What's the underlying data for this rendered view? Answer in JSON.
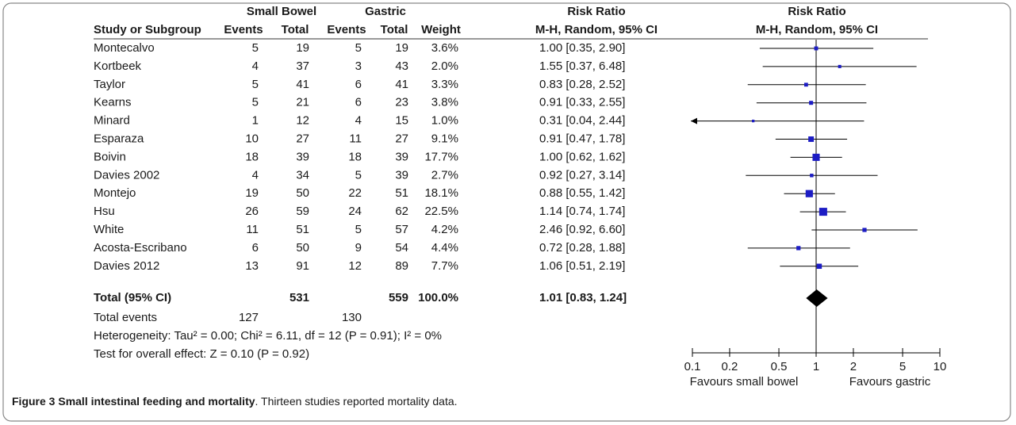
{
  "chart_data": {
    "type": "forest",
    "header": {
      "group_1": "Small Bowel",
      "group_2": "Gastric",
      "effect_title": "Risk Ratio",
      "plot_title": "Risk Ratio",
      "study_col": "Study or Subgroup",
      "events_1": "Events",
      "total_1": "Total",
      "events_2": "Events",
      "total_2": "Total",
      "weight": "Weight",
      "method": "M-H, Random, 95% CI",
      "plot_method": "M-H, Random, 95% CI"
    },
    "studies": [
      {
        "name": "Montecalvo",
        "sb_events": 5,
        "sb_total": 19,
        "g_events": 5,
        "g_total": 19,
        "weight": 3.6,
        "weight_label": "3.6%",
        "rr": 1.0,
        "lo": 0.35,
        "hi": 2.9,
        "ci_label": "1.00 [0.35, 2.90]"
      },
      {
        "name": "Kortbeek",
        "sb_events": 4,
        "sb_total": 37,
        "g_events": 3,
        "g_total": 43,
        "weight": 2.0,
        "weight_label": "2.0%",
        "rr": 1.55,
        "lo": 0.37,
        "hi": 6.48,
        "ci_label": "1.55 [0.37, 6.48]"
      },
      {
        "name": "Taylor",
        "sb_events": 5,
        "sb_total": 41,
        "g_events": 6,
        "g_total": 41,
        "weight": 3.3,
        "weight_label": "3.3%",
        "rr": 0.83,
        "lo": 0.28,
        "hi": 2.52,
        "ci_label": "0.83 [0.28, 2.52]"
      },
      {
        "name": "Kearns",
        "sb_events": 5,
        "sb_total": 21,
        "g_events": 6,
        "g_total": 23,
        "weight": 3.8,
        "weight_label": "3.8%",
        "rr": 0.91,
        "lo": 0.33,
        "hi": 2.55,
        "ci_label": "0.91 [0.33, 2.55]"
      },
      {
        "name": "Minard",
        "sb_events": 1,
        "sb_total": 12,
        "g_events": 4,
        "g_total": 15,
        "weight": 1.0,
        "weight_label": "1.0%",
        "rr": 0.31,
        "lo": 0.04,
        "hi": 2.44,
        "ci_label": "0.31 [0.04, 2.44]"
      },
      {
        "name": "Esparaza",
        "sb_events": 10,
        "sb_total": 27,
        "g_events": 11,
        "g_total": 27,
        "weight": 9.1,
        "weight_label": "9.1%",
        "rr": 0.91,
        "lo": 0.47,
        "hi": 1.78,
        "ci_label": "0.91 [0.47, 1.78]"
      },
      {
        "name": "Boivin",
        "sb_events": 18,
        "sb_total": 39,
        "g_events": 18,
        "g_total": 39,
        "weight": 17.7,
        "weight_label": "17.7%",
        "rr": 1.0,
        "lo": 0.62,
        "hi": 1.62,
        "ci_label": "1.00 [0.62, 1.62]"
      },
      {
        "name": "Davies 2002",
        "sb_events": 4,
        "sb_total": 34,
        "g_events": 5,
        "g_total": 39,
        "weight": 2.7,
        "weight_label": "2.7%",
        "rr": 0.92,
        "lo": 0.27,
        "hi": 3.14,
        "ci_label": "0.92 [0.27, 3.14]"
      },
      {
        "name": "Montejo",
        "sb_events": 19,
        "sb_total": 50,
        "g_events": 22,
        "g_total": 51,
        "weight": 18.1,
        "weight_label": "18.1%",
        "rr": 0.88,
        "lo": 0.55,
        "hi": 1.42,
        "ci_label": "0.88 [0.55, 1.42]"
      },
      {
        "name": "Hsu",
        "sb_events": 26,
        "sb_total": 59,
        "g_events": 24,
        "g_total": 62,
        "weight": 22.5,
        "weight_label": "22.5%",
        "rr": 1.14,
        "lo": 0.74,
        "hi": 1.74,
        "ci_label": "1.14 [0.74, 1.74]"
      },
      {
        "name": "White",
        "sb_events": 11,
        "sb_total": 51,
        "g_events": 5,
        "g_total": 57,
        "weight": 4.2,
        "weight_label": "4.2%",
        "rr": 2.46,
        "lo": 0.92,
        "hi": 6.6,
        "ci_label": "2.46 [0.92, 6.60]"
      },
      {
        "name": "Acosta-Escribano",
        "sb_events": 6,
        "sb_total": 50,
        "g_events": 9,
        "g_total": 54,
        "weight": 4.4,
        "weight_label": "4.4%",
        "rr": 0.72,
        "lo": 0.28,
        "hi": 1.88,
        "ci_label": "0.72 [0.28, 1.88]"
      },
      {
        "name": "Davies 2012",
        "sb_events": 13,
        "sb_total": 91,
        "g_events": 12,
        "g_total": 89,
        "weight": 7.7,
        "weight_label": "7.7%",
        "rr": 1.06,
        "lo": 0.51,
        "hi": 2.19,
        "ci_label": "1.06 [0.51, 2.19]"
      }
    ],
    "total": {
      "name": "Total (95% CI)",
      "sb_total": 531,
      "g_total": 559,
      "weight_label": "100.0%",
      "rr": 1.01,
      "lo": 0.83,
      "hi": 1.24,
      "ci_label": "1.01 [0.83, 1.24]"
    },
    "total_events": {
      "name": "Total events",
      "sb_events": 127,
      "g_events": 130
    },
    "heterogeneity": "Heterogeneity: Tau² = 0.00; Chi² = 6.11, df = 12 (P = 0.91); I² = 0%",
    "overall_effect": "Test for overall effect: Z = 0.10 (P = 0.92)",
    "xscale": "log",
    "xlim": [
      0.1,
      10
    ],
    "xticks": [
      0.1,
      0.2,
      0.5,
      1,
      2,
      5,
      10
    ],
    "favours_left": "Favours small bowel",
    "favours_right": "Favours gastric",
    "square_color": "#1c1cc4",
    "diamond_color": "#000000"
  },
  "caption": {
    "label": "Figure 3",
    "title": "Small intestinal feeding and mortality",
    "text": ". Thirteen studies reported mortality data."
  }
}
